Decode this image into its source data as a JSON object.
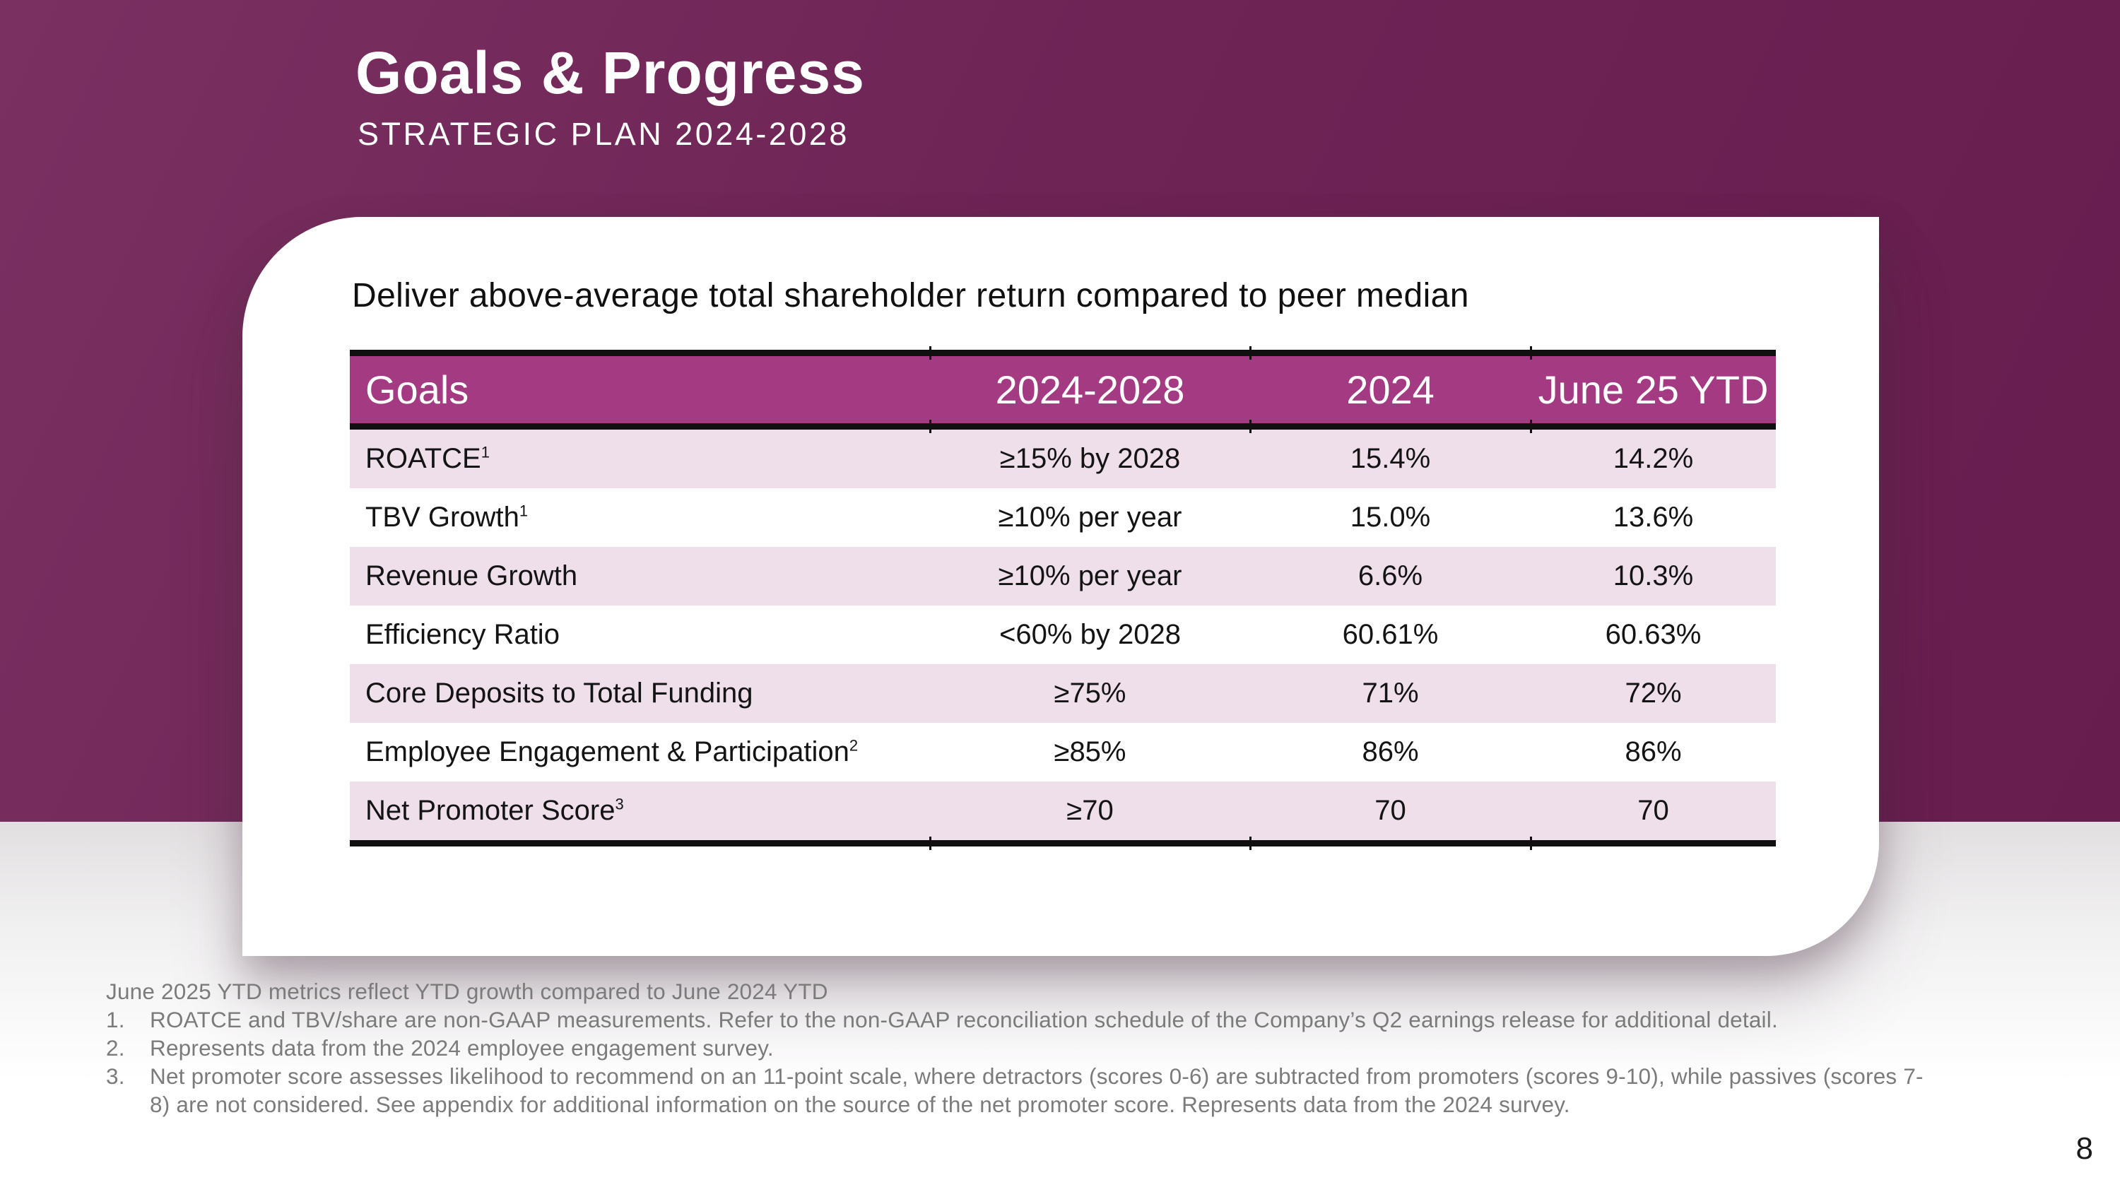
{
  "colors": {
    "purple_bg": "#6E2455",
    "header_magenta": "#A43B82",
    "row_pink": "#EFDFEB",
    "table_border": "#101010",
    "footnote_gray": "#7B7B7B",
    "text_dark": "#141414"
  },
  "header": {
    "title": "Goals & Progress",
    "subtitle": "STRATEGIC PLAN 2024-2028"
  },
  "card": {
    "heading": "Deliver above-average total shareholder return compared to peer median"
  },
  "table": {
    "columns": [
      "Goals",
      "2024-2028",
      "2024",
      "June 25 YTD"
    ],
    "rows": [
      {
        "goal": "ROATCE",
        "sup": "1",
        "target": "≥15% by 2028",
        "fy2024": "15.4%",
        "june25_ytd": "14.2%"
      },
      {
        "goal": "TBV Growth",
        "sup": "1",
        "target": "≥10% per year",
        "fy2024": "15.0%",
        "june25_ytd": "13.6%"
      },
      {
        "goal": "Revenue Growth",
        "sup": "",
        "target": "≥10% per year",
        "fy2024": "6.6%",
        "june25_ytd": "10.3%"
      },
      {
        "goal": "Efficiency Ratio",
        "sup": "",
        "target": "<60% by 2028",
        "fy2024": "60.61%",
        "june25_ytd": "60.63%"
      },
      {
        "goal": "Core Deposits to Total Funding",
        "sup": "",
        "target": "≥75%",
        "fy2024": "71%",
        "june25_ytd": "72%"
      },
      {
        "goal": "Employee Engagement & Participation",
        "sup": "2",
        "target": "≥85%",
        "fy2024": "86%",
        "june25_ytd": "86%"
      },
      {
        "goal": "Net Promoter Score",
        "sup": "3",
        "target": "≥70",
        "fy2024": "70",
        "june25_ytd": "70"
      }
    ]
  },
  "footnotes": {
    "intro": "June 2025 YTD metrics reflect YTD growth compared to June 2024 YTD",
    "items": [
      {
        "num": "1.",
        "text": "ROATCE and TBV/share are non-GAAP measurements. Refer to the non-GAAP reconciliation schedule of the Company’s Q2 earnings release for additional detail."
      },
      {
        "num": "2.",
        "text": "Represents data from the 2024 employee engagement survey."
      },
      {
        "num": "3.",
        "text": "Net promoter score assesses likelihood to recommend on an 11-point scale, where detractors (scores 0-6) are subtracted from promoters (scores 9-10), while passives (scores 7-8) are not considered. See appendix for additional information on the source of the net promoter score. Represents data from the 2024 survey."
      }
    ]
  },
  "page_number": "8"
}
